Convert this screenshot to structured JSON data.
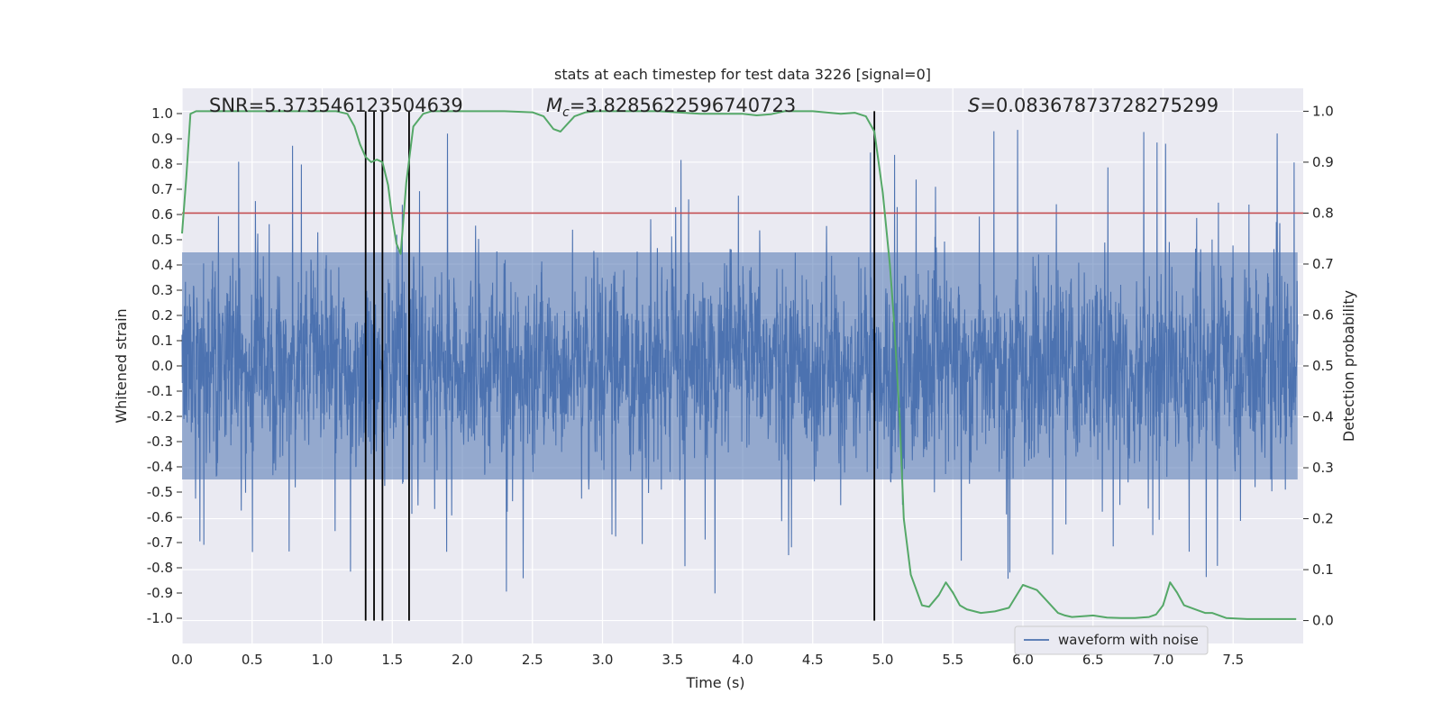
{
  "chart_data": {
    "type": "line",
    "title": "stats at each timestep for test data 3226 [signal=0]",
    "xlabel": "Time (s)",
    "ylabel": "Whitened strain",
    "y2label": "Detection probability",
    "xlim": [
      0.0,
      8.0
    ],
    "ylim": [
      -1.1,
      1.1
    ],
    "y2lim": [
      -0.045,
      1.045
    ],
    "xticks": [
      "0.0",
      "0.5",
      "1.0",
      "1.5",
      "2.0",
      "2.5",
      "3.0",
      "3.5",
      "4.0",
      "4.5",
      "5.0",
      "5.5",
      "6.0",
      "6.5",
      "7.0",
      "7.5"
    ],
    "yticks": [
      "-1.0",
      "-0.9",
      "-0.8",
      "-0.7",
      "-0.6",
      "-0.5",
      "-0.4",
      "-0.3",
      "-0.2",
      "-0.1",
      "0.0",
      "0.1",
      "0.2",
      "0.3",
      "0.4",
      "0.5",
      "0.6",
      "0.7",
      "0.8",
      "0.9",
      "1.0"
    ],
    "y2ticks": [
      "0.0",
      "0.1",
      "0.2",
      "0.3",
      "0.4",
      "0.5",
      "0.6",
      "0.7",
      "0.8",
      "0.9",
      "1.0"
    ],
    "annotations": {
      "snr": "SNR=5.373546123504639",
      "mc_symbol": "M",
      "mc_sub": "c",
      "mc_value": "=3.8285622596740723",
      "s_symbol": "S",
      "s_value": "=0.08367873728275299"
    },
    "threshold": {
      "value": 0.8,
      "color": "#c44e52"
    },
    "vertical_markers": [
      1.31,
      1.37,
      1.43,
      1.62,
      4.94
    ],
    "legend": {
      "label": "waveform with noise",
      "position": "lower-right"
    },
    "waveform": {
      "name": "waveform with noise",
      "color": "#4c72b0",
      "amplitude_range": [
        -0.97,
        0.97
      ],
      "typical_envelope": [
        -0.45,
        0.45
      ]
    },
    "detection_probability": {
      "name": "Detection probability",
      "color": "#55a868",
      "x": [
        0.0,
        0.03,
        0.06,
        0.1,
        0.15,
        0.2,
        0.4,
        0.6,
        0.8,
        1.0,
        1.1,
        1.18,
        1.23,
        1.27,
        1.31,
        1.35,
        1.39,
        1.43,
        1.47,
        1.5,
        1.53,
        1.56,
        1.6,
        1.65,
        1.72,
        1.78,
        1.9,
        2.1,
        2.3,
        2.5,
        2.58,
        2.65,
        2.7,
        2.75,
        2.8,
        2.88,
        2.95,
        3.1,
        3.4,
        3.7,
        3.9,
        4.0,
        4.1,
        4.2,
        4.3,
        4.5,
        4.7,
        4.8,
        4.88,
        4.94,
        5.0,
        5.05,
        5.08,
        5.12,
        5.15,
        5.2,
        5.28,
        5.33,
        5.4,
        5.45,
        5.5,
        5.55,
        5.6,
        5.7,
        5.8,
        5.9,
        6.0,
        6.1,
        6.15,
        6.2,
        6.25,
        6.3,
        6.35,
        6.45,
        6.5,
        6.6,
        6.7,
        6.8,
        6.9,
        6.95,
        7.0,
        7.05,
        7.1,
        7.15,
        7.25,
        7.3,
        7.35,
        7.45,
        7.6,
        7.75,
        7.9,
        7.95
      ],
      "y": [
        0.76,
        0.87,
        0.995,
        1.0,
        1.0,
        1.0,
        1.0,
        1.0,
        1.0,
        1.0,
        1.0,
        0.995,
        0.97,
        0.935,
        0.91,
        0.9,
        0.905,
        0.9,
        0.855,
        0.79,
        0.74,
        0.72,
        0.86,
        0.97,
        0.995,
        1.0,
        1.0,
        1.0,
        1.0,
        0.998,
        0.99,
        0.965,
        0.96,
        0.975,
        0.99,
        0.998,
        1.0,
        1.0,
        1.0,
        0.995,
        0.995,
        0.995,
        0.992,
        0.994,
        1.0,
        1.0,
        0.995,
        0.997,
        0.99,
        0.96,
        0.84,
        0.7,
        0.59,
        0.4,
        0.2,
        0.09,
        0.03,
        0.027,
        0.05,
        0.075,
        0.055,
        0.03,
        0.022,
        0.015,
        0.018,
        0.025,
        0.07,
        0.06,
        0.045,
        0.03,
        0.015,
        0.01,
        0.007,
        0.009,
        0.01,
        0.006,
        0.005,
        0.005,
        0.007,
        0.012,
        0.03,
        0.075,
        0.055,
        0.03,
        0.02,
        0.015,
        0.015,
        0.005,
        0.003,
        0.003,
        0.003,
        0.003
      ]
    }
  }
}
